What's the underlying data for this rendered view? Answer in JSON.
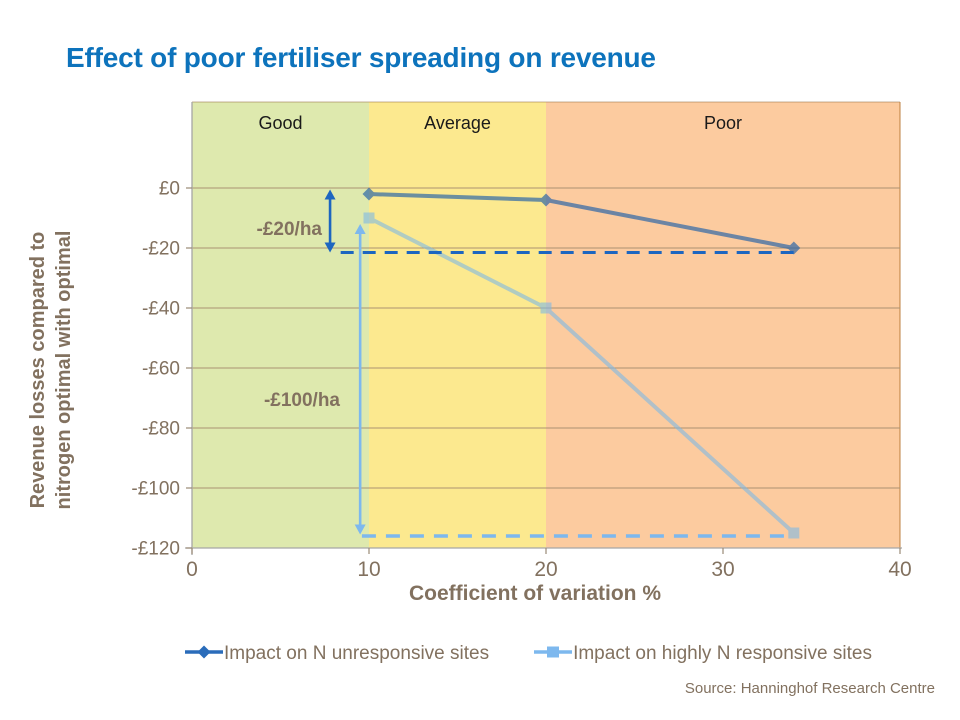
{
  "title": {
    "text": "Effect of poor fertiliser spreading on revenue",
    "color": "#0d73bc"
  },
  "source": "Source: Hanninghof  Research Centre",
  "legend": {
    "items": [
      {
        "label": "Impact on N unresponsive sites",
        "marker": "diamond",
        "color": "#2a6cba"
      },
      {
        "label": "Impact on highly N responsive sites",
        "marker": "square",
        "color": "#7db8ee"
      }
    ]
  },
  "chart_data": {
    "type": "line",
    "title": "Effect of poor fertiliser spreading on revenue",
    "xlabel": "Coefficient of variation %",
    "ylabel": "Revenue losses compared to nitrogen optimal with optimal",
    "ylabel_lines": [
      "Revenue losses compared to",
      "nitrogen optimal with optimal"
    ],
    "xlim": [
      0,
      40
    ],
    "ylim": [
      -120,
      0
    ],
    "x_ticks": [
      {
        "value": 0,
        "label": "0"
      },
      {
        "value": 10,
        "label": "10"
      },
      {
        "value": 20,
        "label": "20"
      },
      {
        "value": 30,
        "label": "30"
      },
      {
        "value": 40,
        "label": "40"
      }
    ],
    "y_ticks": [
      {
        "value": 0,
        "label": "£0"
      },
      {
        "value": -20,
        "label": "-£20"
      },
      {
        "value": -40,
        "label": "-£40"
      },
      {
        "value": -60,
        "label": "-£60"
      },
      {
        "value": -80,
        "label": "-£80"
      },
      {
        "value": -100,
        "label": "-£100"
      },
      {
        "value": -120,
        "label": "-£120"
      }
    ],
    "bands": [
      {
        "label": "Good",
        "from": 0,
        "to": 10,
        "color": "#dee9ae"
      },
      {
        "label": "Average",
        "from": 10,
        "to": 20,
        "color": "#fce98f"
      },
      {
        "label": "Poor",
        "from": 20,
        "to": 40,
        "color": "#fccb9f"
      }
    ],
    "series": [
      {
        "name": "Impact on N unresponsive sites",
        "marker": "diamond",
        "color": "#1f5fa8",
        "opacity": 0.65,
        "points": [
          [
            10,
            -2
          ],
          [
            20,
            -4
          ],
          [
            34,
            -20
          ]
        ]
      },
      {
        "name": "Impact on highly N responsive sites",
        "marker": "square",
        "color": "#7fb9e5",
        "opacity": 0.6,
        "points": [
          [
            10,
            -10
          ],
          [
            20,
            -40
          ],
          [
            34,
            -115
          ]
        ]
      }
    ],
    "annotations": {
      "label_dark": {
        "text": "-£20/ha"
      },
      "arrow_dark": {
        "x": 7.8,
        "from": -0.5,
        "to": -21.5,
        "color": "#1d66c0"
      },
      "dashed_dark": {
        "y": -21.5,
        "from_x": 8.4,
        "to_x": 34,
        "color": "#1d66c0"
      },
      "label_light": {
        "text": "-£100/ha"
      },
      "arrow_light": {
        "x": 9.5,
        "from": -12,
        "to": -115.5,
        "color": "#7db8ee"
      },
      "dashed_light": {
        "y": -116,
        "from_x": 9.6,
        "to_x": 34,
        "color": "#7db8ee"
      }
    },
    "grid": true,
    "legend_position": "bottom",
    "gridline_color": "#ab9271",
    "axis_color": "#a6a6a6",
    "text_color": "#82715f",
    "band_label_color": "#1a1a1a"
  }
}
